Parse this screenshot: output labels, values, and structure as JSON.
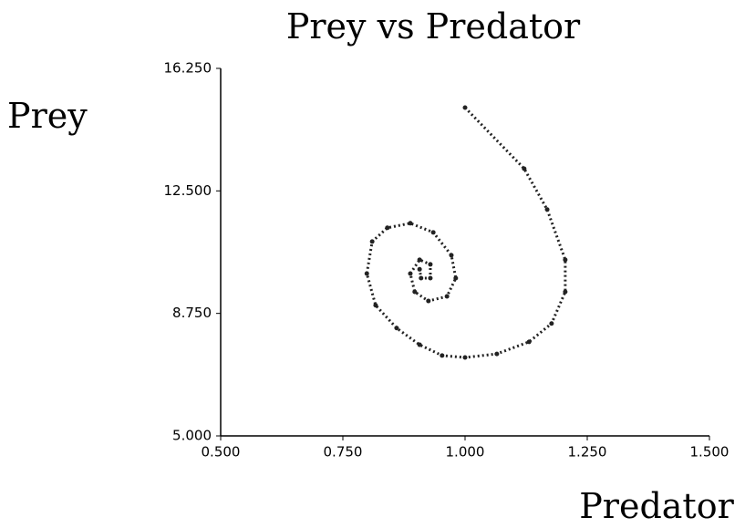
{
  "chart_data": {
    "type": "line",
    "title": "Prey vs Predator",
    "xlabel": "Predator",
    "ylabel": "Prey",
    "color": "#222222",
    "x": [
      1.0,
      1.121,
      1.168,
      1.205,
      1.205,
      1.177,
      1.131,
      1.065,
      1.0,
      0.953,
      0.907,
      0.86,
      0.817,
      0.799,
      0.81,
      0.841,
      0.888,
      0.935,
      0.972,
      0.981,
      0.963,
      0.925,
      0.897,
      0.888,
      0.907,
      0.929,
      0.929,
      0.91,
      0.907
    ],
    "y": [
      15.05,
      13.18,
      11.93,
      10.39,
      9.41,
      8.44,
      7.88,
      7.51,
      7.4,
      7.46,
      7.79,
      8.3,
      9.0,
      9.97,
      10.95,
      11.37,
      11.51,
      11.23,
      10.53,
      9.83,
      9.27,
      9.13,
      9.41,
      9.97,
      10.39,
      10.25,
      9.83,
      9.83,
      10.1
    ],
    "xlim": [
      0.5,
      1.5
    ],
    "ylim": [
      5.0,
      16.25
    ],
    "xticks": [
      {
        "value": 0.5,
        "label": "0.500"
      },
      {
        "value": 0.75,
        "label": "0.750"
      },
      {
        "value": 1.0,
        "label": "1.000"
      },
      {
        "value": 1.25,
        "label": "1.250"
      },
      {
        "value": 1.5,
        "label": "1.500"
      }
    ],
    "yticks": [
      {
        "value": 5.0,
        "label": "5.000"
      },
      {
        "value": 8.75,
        "label": "8.750"
      },
      {
        "value": 12.5,
        "label": "12.500"
      },
      {
        "value": 16.25,
        "label": "16.250"
      }
    ]
  }
}
